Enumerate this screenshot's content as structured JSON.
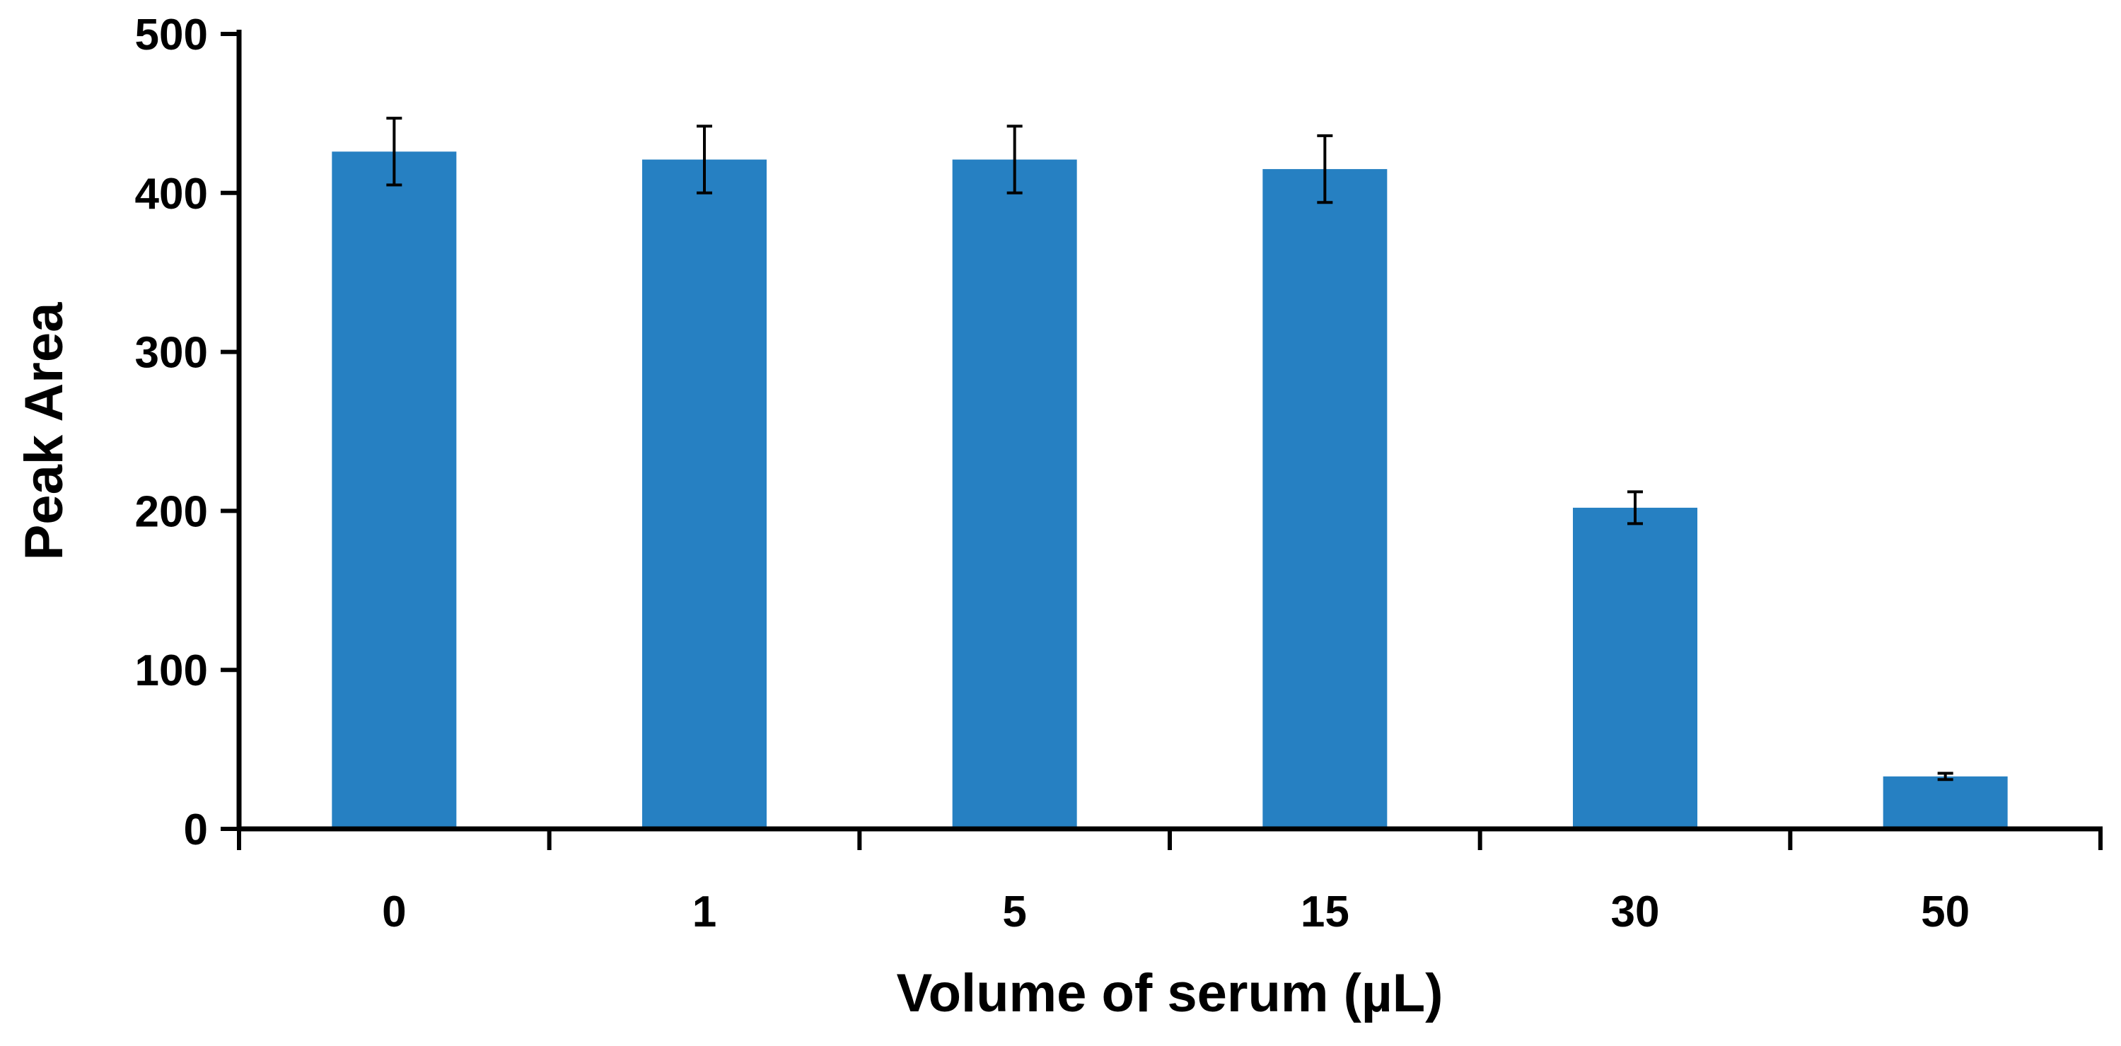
{
  "chart_data": {
    "type": "bar",
    "title": "",
    "xlabel": "Volume of serum (µL)",
    "ylabel": "Peak Area",
    "categories": [
      "0",
      "1",
      "5",
      "15",
      "30",
      "50"
    ],
    "series": [
      {
        "values": [
          426,
          421,
          421,
          415,
          202,
          33
        ],
        "errors": [
          21,
          21,
          21,
          21,
          10,
          2
        ]
      }
    ],
    "ylim": [
      0,
      500
    ],
    "yticks": [
      "0",
      "100",
      "200",
      "300",
      "400",
      "500"
    ],
    "grid": false,
    "legend": "none",
    "colors": {
      "bar": "#2680C2",
      "axis": "#000000",
      "error_bar": "#000000"
    }
  }
}
